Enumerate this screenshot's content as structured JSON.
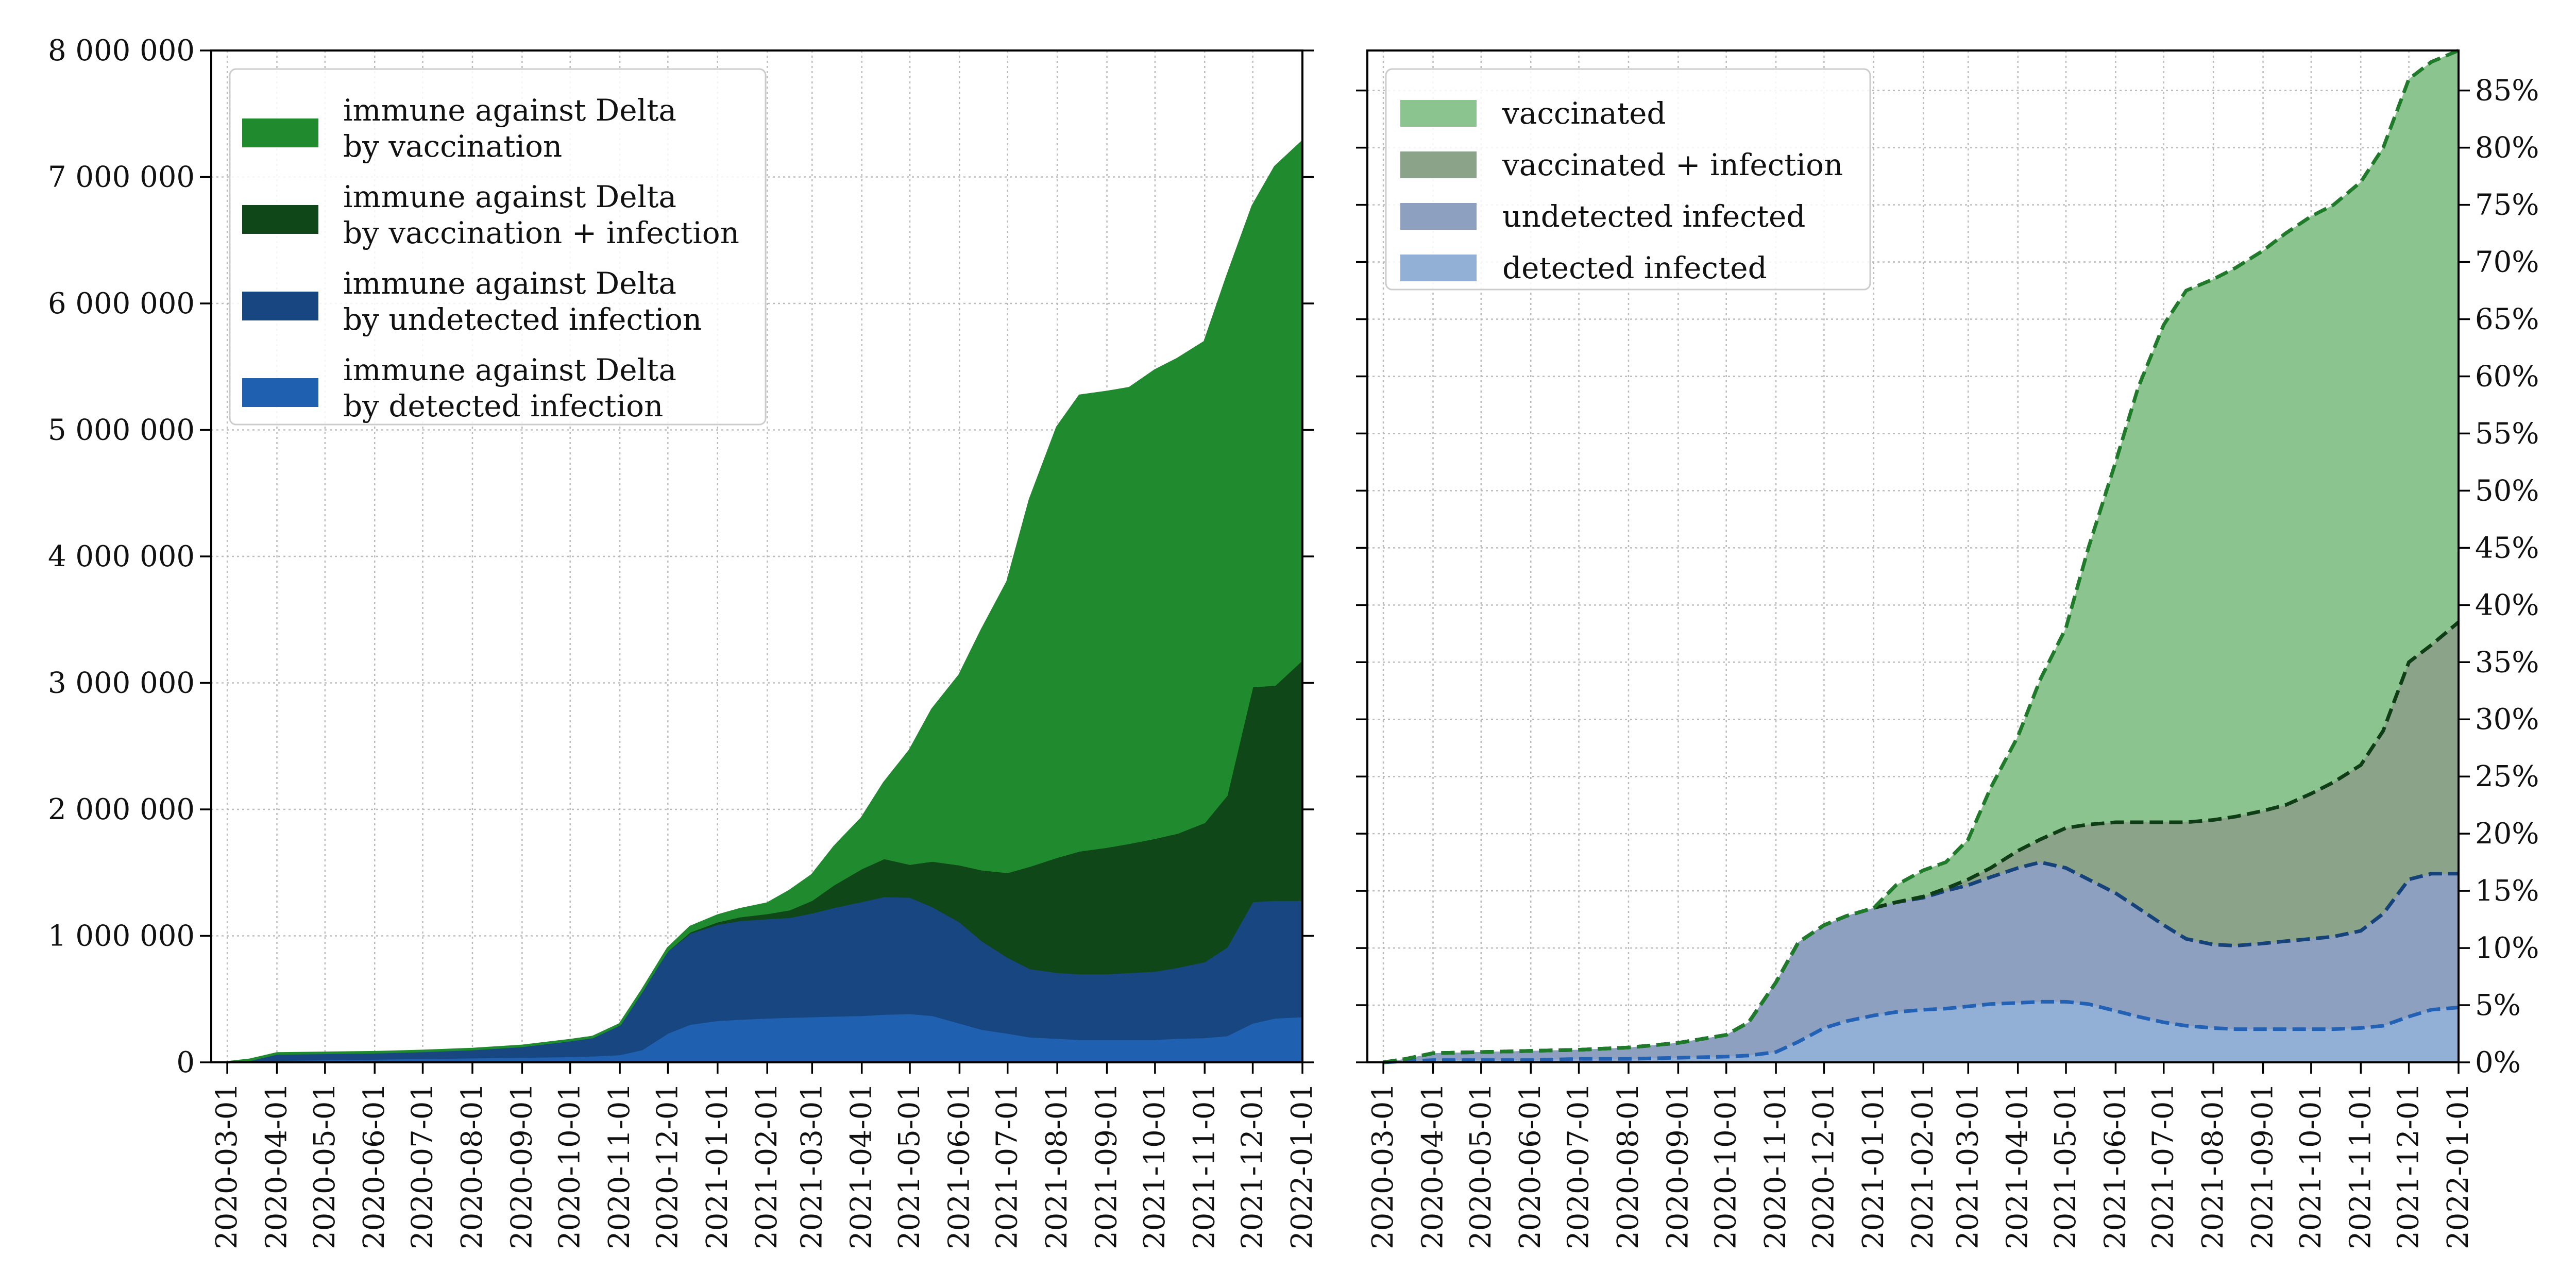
{
  "chart_data": [
    {
      "type": "area",
      "stacked": true,
      "x_dates": [
        "2020-03-01",
        "2020-03-15",
        "2020-04-01",
        "2020-05-01",
        "2020-06-01",
        "2020-07-01",
        "2020-08-01",
        "2020-09-01",
        "2020-10-01",
        "2020-10-15",
        "2020-11-01",
        "2020-11-15",
        "2020-12-01",
        "2020-12-15",
        "2021-01-01",
        "2021-01-15",
        "2021-02-01",
        "2021-02-15",
        "2021-03-01",
        "2021-03-15",
        "2021-04-01",
        "2021-04-15",
        "2021-05-01",
        "2021-05-15",
        "2021-06-01",
        "2021-06-15",
        "2021-07-01",
        "2021-07-15",
        "2021-08-01",
        "2021-08-15",
        "2021-09-01",
        "2021-09-15",
        "2021-10-01",
        "2021-10-15",
        "2021-11-01",
        "2021-11-15",
        "2021-12-01",
        "2021-12-15",
        "2022-01-01"
      ],
      "x_ticks": [
        "2020-03-01",
        "2020-04-01",
        "2020-05-01",
        "2020-06-01",
        "2020-07-01",
        "2020-08-01",
        "2020-09-01",
        "2020-10-01",
        "2020-11-01",
        "2020-12-01",
        "2021-01-01",
        "2021-02-01",
        "2021-03-01",
        "2021-04-01",
        "2021-05-01",
        "2021-06-01",
        "2021-07-01",
        "2021-08-01",
        "2021-09-01",
        "2021-10-01",
        "2021-11-01",
        "2021-12-01",
        "2022-01-01"
      ],
      "y_ticks": [
        "0",
        "1 000 000",
        "2 000 000",
        "3 000 000",
        "4 000 000",
        "5 000 000",
        "6 000 000",
        "7 000 000",
        "8 000 000"
      ],
      "ylim": [
        0,
        8000000
      ],
      "grid": true,
      "legend_position": "top-left",
      "series": [
        {
          "name": "immune against Delta\nby detected infection",
          "color": "#2060b0",
          "values": [
            0,
            5000,
            15000,
            20000,
            25000,
            30000,
            35000,
            40000,
            45000,
            50000,
            60000,
            100000,
            230000,
            300000,
            330000,
            340000,
            350000,
            355000,
            360000,
            365000,
            370000,
            380000,
            385000,
            370000,
            310000,
            260000,
            230000,
            200000,
            190000,
            180000,
            180000,
            180000,
            180000,
            190000,
            195000,
            210000,
            310000,
            350000,
            360000
          ]
        },
        {
          "name": "immune against Delta\nby undetected infection",
          "color": "#174680",
          "values": [
            0,
            15000,
            55000,
            55000,
            55000,
            60000,
            70000,
            90000,
            130000,
            150000,
            240000,
            470000,
            650000,
            720000,
            760000,
            780000,
            785000,
            790000,
            820000,
            860000,
            900000,
            930000,
            920000,
            860000,
            800000,
            700000,
            600000,
            540000,
            520000,
            520000,
            520000,
            530000,
            540000,
            560000,
            600000,
            700000,
            960000,
            930000,
            920000
          ]
        },
        {
          "name": "immune against Delta\nby vaccination + infection",
          "color": "#0f4718",
          "values": [
            0,
            0,
            0,
            0,
            0,
            0,
            0,
            0,
            0,
            0,
            0,
            0,
            0,
            10000,
            20000,
            30000,
            40000,
            60000,
            100000,
            180000,
            260000,
            300000,
            260000,
            360000,
            450000,
            560000,
            670000,
            810000,
            910000,
            970000,
            1000000,
            1020000,
            1050000,
            1060000,
            1100000,
            1200000,
            1700000,
            1700000,
            1900000
          ]
        },
        {
          "name": "immune against Delta\nby vaccination",
          "color": "#208a2f",
          "values": [
            0,
            0,
            0,
            0,
            0,
            0,
            0,
            0,
            0,
            0,
            0,
            0,
            20000,
            40000,
            50000,
            60000,
            80000,
            150000,
            200000,
            300000,
            400000,
            600000,
            900000,
            1200000,
            1500000,
            1900000,
            2300000,
            2900000,
            3400000,
            3600000,
            3600000,
            3600000,
            3700000,
            3750000,
            3800000,
            4100000,
            3800000,
            4100000,
            4100000
          ]
        }
      ]
    },
    {
      "type": "area",
      "stacked": false,
      "x_dates": [
        "2020-03-01",
        "2020-03-15",
        "2020-04-01",
        "2020-05-01",
        "2020-06-01",
        "2020-07-01",
        "2020-08-01",
        "2020-09-01",
        "2020-10-01",
        "2020-10-15",
        "2020-11-01",
        "2020-11-15",
        "2020-12-01",
        "2020-12-15",
        "2021-01-01",
        "2021-01-15",
        "2021-02-01",
        "2021-02-15",
        "2021-03-01",
        "2021-03-15",
        "2021-04-01",
        "2021-04-15",
        "2021-05-01",
        "2021-05-15",
        "2021-06-01",
        "2021-06-15",
        "2021-07-01",
        "2021-07-15",
        "2021-08-01",
        "2021-08-15",
        "2021-09-01",
        "2021-09-15",
        "2021-10-01",
        "2021-10-15",
        "2021-11-01",
        "2021-11-15",
        "2021-12-01",
        "2021-12-15",
        "2022-01-01"
      ],
      "x_ticks": [
        "2020-03-01",
        "2020-04-01",
        "2020-05-01",
        "2020-06-01",
        "2020-07-01",
        "2020-08-01",
        "2020-09-01",
        "2020-10-01",
        "2020-11-01",
        "2020-12-01",
        "2021-01-01",
        "2021-02-01",
        "2021-03-01",
        "2021-04-01",
        "2021-05-01",
        "2021-06-01",
        "2021-07-01",
        "2021-08-01",
        "2021-09-01",
        "2021-10-01",
        "2021-11-01",
        "2021-12-01",
        "2022-01-01"
      ],
      "y_ticks": [
        "0%",
        "5%",
        "10%",
        "15%",
        "20%",
        "25%",
        "30%",
        "35%",
        "40%",
        "45%",
        "50%",
        "55%",
        "60%",
        "65%",
        "70%",
        "75%",
        "80%",
        "85%"
      ],
      "y_unit": "percent",
      "ylim": [
        0,
        88.5
      ],
      "y_axis_side": "right",
      "grid": true,
      "legend_position": "top-left",
      "series": [
        {
          "name": "vaccinated",
          "color": "#8cc490",
          "line_color": "#1f7a2a",
          "values": [
            0,
            0.3,
            0.8,
            0.9,
            1.0,
            1.1,
            1.3,
            1.7,
            2.4,
            3.5,
            7.0,
            10.5,
            12.0,
            12.8,
            13.5,
            15.5,
            16.8,
            17.5,
            19.5,
            24.0,
            28.5,
            33.5,
            38.0,
            45.0,
            52.5,
            59.0,
            64.5,
            67.5,
            68.5,
            69.5,
            71.0,
            72.5,
            74.0,
            75.0,
            77.0,
            80.0,
            86.0,
            87.5,
            88.5
          ]
        },
        {
          "name": "vaccinated + infection",
          "color": "#8aa389",
          "line_color": "#0f3d15",
          "values": [
            0,
            0.3,
            0.8,
            0.9,
            1.0,
            1.1,
            1.3,
            1.7,
            2.4,
            3.5,
            7.0,
            10.5,
            12.0,
            12.8,
            13.5,
            14.0,
            14.5,
            15.2,
            16.0,
            17.0,
            18.5,
            19.5,
            20.5,
            20.8,
            21.0,
            21.0,
            21.0,
            21.0,
            21.2,
            21.5,
            22.0,
            22.5,
            23.5,
            24.5,
            26.0,
            29.0,
            35.0,
            36.5,
            38.5
          ]
        },
        {
          "name": "undetected infected",
          "color": "#8da0bf",
          "line_color": "#16427a",
          "values": [
            0,
            0.3,
            0.8,
            0.9,
            1.0,
            1.1,
            1.3,
            1.7,
            2.4,
            3.5,
            7.0,
            10.5,
            12.0,
            12.8,
            13.5,
            14.0,
            14.4,
            15.0,
            15.5,
            16.2,
            17.0,
            17.5,
            17.0,
            16.0,
            14.8,
            13.5,
            12.0,
            10.8,
            10.3,
            10.2,
            10.4,
            10.6,
            10.8,
            11.0,
            11.5,
            13.0,
            16.0,
            16.5,
            16.5
          ]
        },
        {
          "name": "detected infected",
          "color": "#92afd6",
          "line_color": "#2361b5",
          "values": [
            0,
            0.1,
            0.2,
            0.2,
            0.2,
            0.3,
            0.3,
            0.4,
            0.5,
            0.6,
            0.9,
            1.8,
            3.0,
            3.6,
            4.1,
            4.4,
            4.6,
            4.7,
            4.9,
            5.1,
            5.2,
            5.3,
            5.3,
            5.1,
            4.5,
            4.0,
            3.5,
            3.2,
            3.0,
            2.9,
            2.9,
            2.9,
            2.9,
            2.9,
            3.0,
            3.2,
            4.0,
            4.6,
            4.8
          ]
        }
      ]
    }
  ]
}
